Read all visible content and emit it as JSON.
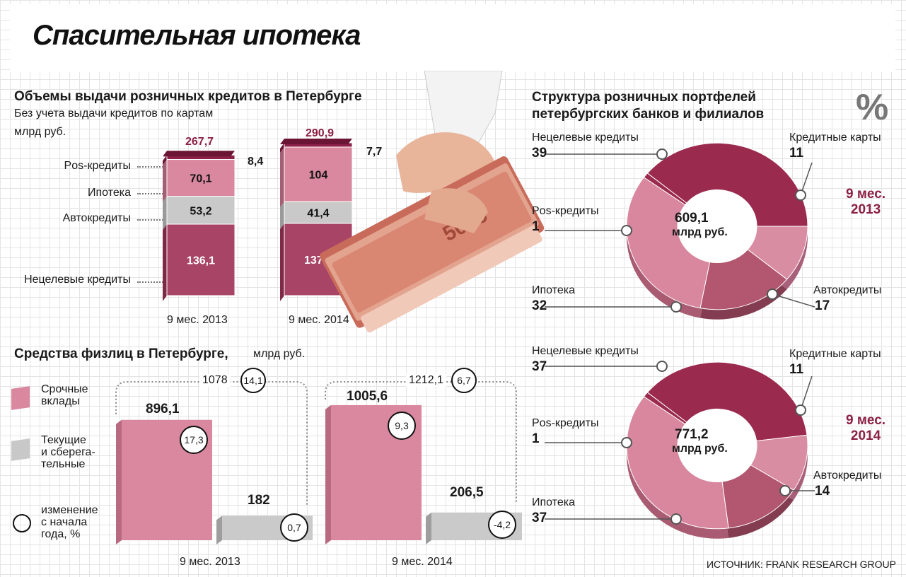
{
  "title": "Спасительная ипотека",
  "source": "ИСТОЧНИК: FRANK RESEARCH GROUP",
  "percent_sign": "%",
  "colors": {
    "maroon": "#9b2a4f",
    "pink": "#d1879d",
    "mid": "#b3566f",
    "gray": "#c8c8c8",
    "bar_pink": "#d9889f"
  },
  "chart_data": [
    {
      "type": "bar",
      "title": "Объемы выдачи розничных кредитов в Петербурге",
      "subtitle": "Без учета выдачи кредитов по картам",
      "unit": "млрд руб.",
      "stacked": true,
      "categories": [
        "9 мес. 2013",
        "9 мес. 2014"
      ],
      "totals": [
        "267,7",
        "290,9"
      ],
      "series": [
        {
          "name": "Нецелевые кредиты",
          "values": [
            136.1,
            137.7
          ],
          "labels": [
            "136,1",
            "137,7"
          ]
        },
        {
          "name": "Автокредиты",
          "values": [
            53.2,
            41.4
          ],
          "labels": [
            "53,2",
            "41,4"
          ]
        },
        {
          "name": "Ипотека",
          "values": [
            70.1,
            104
          ],
          "labels": [
            "70,1",
            "104"
          ]
        },
        {
          "name": "Pos-кредиты",
          "values": [
            8.4,
            7.7
          ],
          "labels": [
            "8,4",
            "7,7"
          ]
        }
      ]
    },
    {
      "type": "bar",
      "title": "Средства физлиц в Петербурге,",
      "unit": "млрд руб.",
      "categories": [
        "9 мес. 2013",
        "9 мес. 2014"
      ],
      "totals": [
        "1078",
        "1212,1"
      ],
      "total_change": [
        "14,1",
        "6,7"
      ],
      "series": [
        {
          "name": "Срочные вклады",
          "values": [
            896.1,
            1005.6
          ],
          "labels": [
            "896,1",
            "1005,6"
          ],
          "change": [
            "17,3",
            "9,3"
          ]
        },
        {
          "name": "Текущие и сберега-тельные",
          "values": [
            182,
            206.5
          ],
          "labels": [
            "182",
            "206,5"
          ],
          "change": [
            "0,7",
            "-4,2"
          ]
        }
      ],
      "legend": [
        "Срочные вклады",
        "Текущие и сберега-тельные",
        "изменение с начала года, %"
      ]
    },
    {
      "type": "pie",
      "title": "Структура розничных портфелей петербургских банков и филиалов",
      "period": "9 мес. 2013",
      "center_value": "609,1",
      "center_unit": "млрд руб.",
      "slices": [
        {
          "label": "Нецелевые кредиты",
          "value": 39
        },
        {
          "label": "Кредитные карты",
          "value": 11
        },
        {
          "label": "Автокредиты",
          "value": 17
        },
        {
          "label": "Ипотека",
          "value": 32
        },
        {
          "label": "Pos-кредиты",
          "value": 1
        }
      ]
    },
    {
      "type": "pie",
      "period": "9 мес. 2014",
      "center_value": "771,2",
      "center_unit": "млрд руб.",
      "slices": [
        {
          "label": "Нецелевые кредиты",
          "value": 37
        },
        {
          "label": "Кредитные карты",
          "value": 11
        },
        {
          "label": "Автокредиты",
          "value": 14
        },
        {
          "label": "Ипотека",
          "value": 37
        },
        {
          "label": "Pos-кредиты",
          "value": 1
        }
      ]
    }
  ],
  "labels": {
    "period_2013": "9 мес.\n2013",
    "period_2014": "9 мес.\n2014",
    "legend_deposit": "Срочные\nвклады",
    "legend_current": "Текущие\nи сберега-\nтельные",
    "legend_change": "изменение\nс начала\nгода, %"
  }
}
